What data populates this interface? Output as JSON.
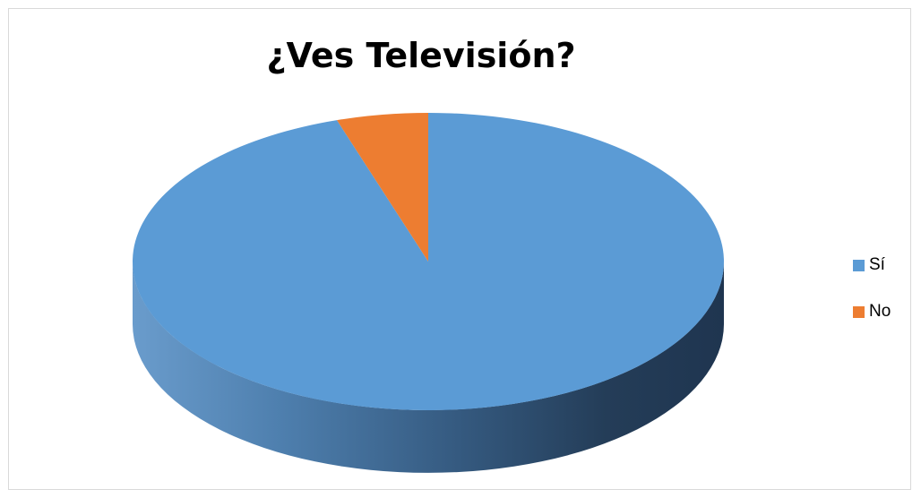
{
  "chart_data": {
    "type": "pie",
    "title": "¿Ves Televisión?",
    "categories": [
      "Sí",
      "No"
    ],
    "values": [
      95,
      5
    ],
    "colors": [
      "#5b9bd5",
      "#ed7d31"
    ],
    "legend_position": "right",
    "style": "3d"
  }
}
